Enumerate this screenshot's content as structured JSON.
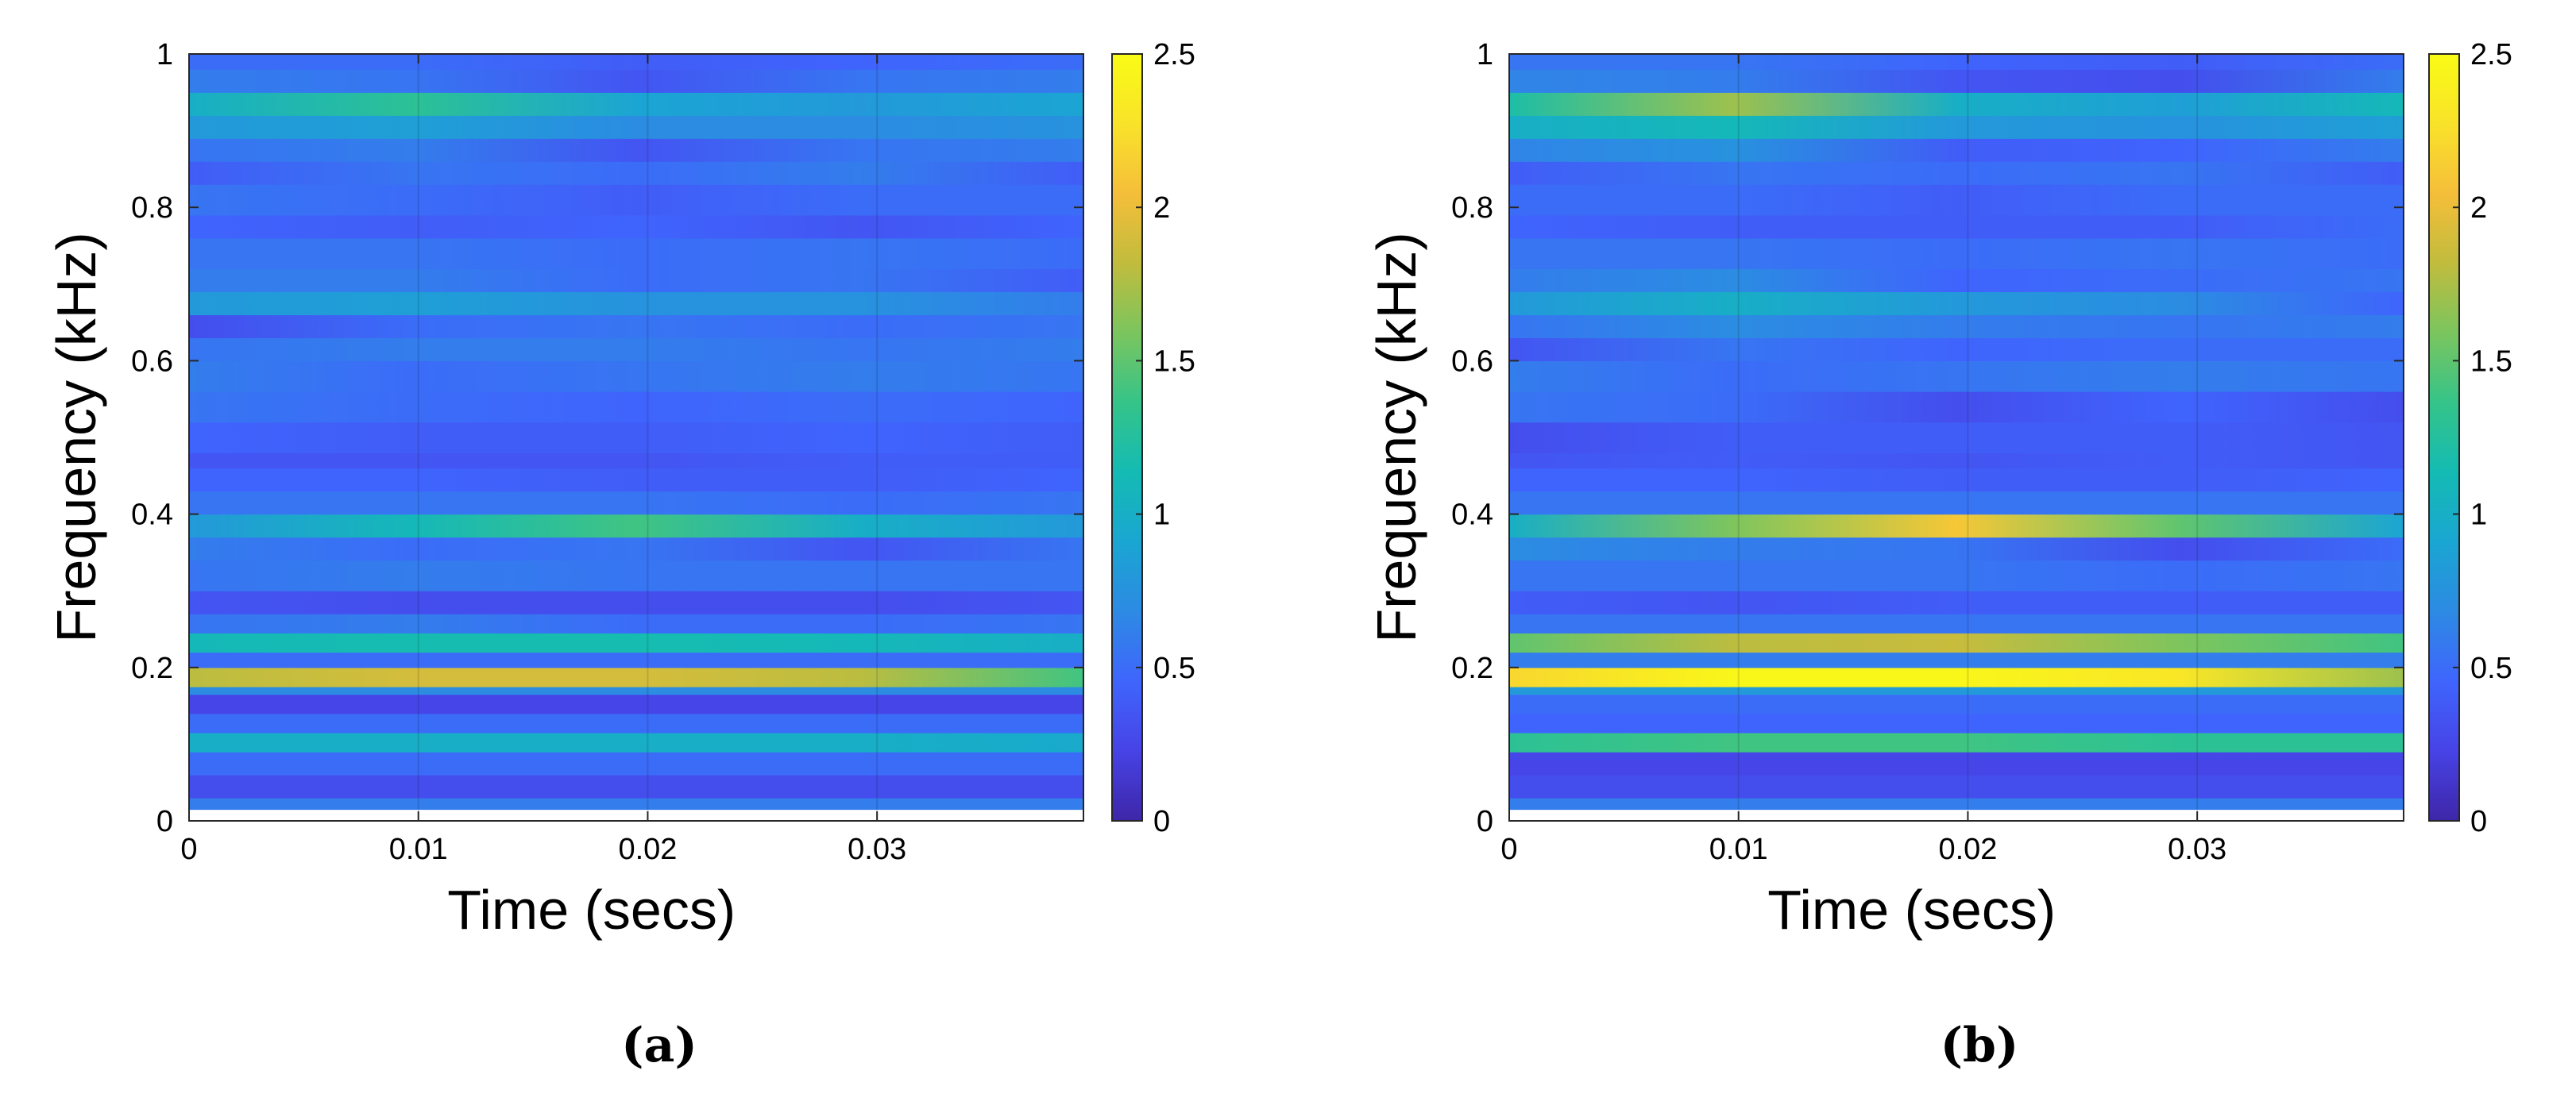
{
  "figure": {
    "panel_labels": [
      "(a)",
      "(b)"
    ]
  },
  "chart_data": [
    {
      "type": "heatmap",
      "panel": "(a)",
      "xlabel": "Time (secs)",
      "ylabel": "Frequency (kHz)",
      "xlim": [
        0,
        0.039
      ],
      "ylim": [
        0,
        1
      ],
      "xticks": [
        0,
        0.01,
        0.02,
        0.03
      ],
      "xtick_labels": [
        "0",
        "0.01",
        "0.02",
        "0.03"
      ],
      "yticks": [
        0,
        0.2,
        0.4,
        0.6,
        0.8,
        1
      ],
      "ytick_labels": [
        "0",
        "0.2",
        "0.4",
        "0.6",
        "0.8",
        "1"
      ],
      "colorbar": {
        "range": [
          0,
          2.5
        ],
        "ticks": [
          0,
          0.5,
          1,
          1.5,
          2,
          2.5
        ],
        "tick_labels": [
          "0",
          "0.5",
          "1",
          "1.5",
          "2",
          "2.5"
        ],
        "colormap": [
          "#3e26a8",
          "#4743e6",
          "#3f65fd",
          "#2d8ae3",
          "#1aa6d2",
          "#14bbb3",
          "#35c489",
          "#7bc55e",
          "#c1bc3d",
          "#f5be3a",
          "#f9e32a",
          "#f9fb15"
        ]
      },
      "time_points": [
        0,
        0.00975,
        0.0195,
        0.02925,
        0.039
      ],
      "bands": [
        {
          "f_low": 0.015,
          "f_high": 0.03,
          "values": [
            0.6,
            0.6,
            0.6,
            0.6,
            0.6
          ]
        },
        {
          "f_low": 0.03,
          "f_high": 0.06,
          "values": [
            0.3,
            0.3,
            0.3,
            0.3,
            0.3
          ]
        },
        {
          "f_low": 0.06,
          "f_high": 0.09,
          "values": [
            0.5,
            0.5,
            0.5,
            0.5,
            0.5
          ]
        },
        {
          "f_low": 0.09,
          "f_high": 0.115,
          "values": [
            1.0,
            1.0,
            1.0,
            1.0,
            0.95
          ]
        },
        {
          "f_low": 0.115,
          "f_high": 0.14,
          "values": [
            0.5,
            0.5,
            0.5,
            0.5,
            0.5
          ]
        },
        {
          "f_low": 0.14,
          "f_high": 0.165,
          "values": [
            0.25,
            0.25,
            0.25,
            0.25,
            0.25
          ]
        },
        {
          "f_low": 0.165,
          "f_high": 0.175,
          "values": [
            0.7,
            0.7,
            0.7,
            0.7,
            0.7
          ]
        },
        {
          "f_low": 0.175,
          "f_high": 0.2,
          "values": [
            1.8,
            1.9,
            1.9,
            1.8,
            1.4
          ]
        },
        {
          "f_low": 0.2,
          "f_high": 0.22,
          "values": [
            0.5,
            0.5,
            0.5,
            0.5,
            0.5
          ]
        },
        {
          "f_low": 0.22,
          "f_high": 0.245,
          "values": [
            1.1,
            1.15,
            1.15,
            1.1,
            1.0
          ]
        },
        {
          "f_low": 0.245,
          "f_high": 0.27,
          "values": [
            0.55,
            0.6,
            0.5,
            0.5,
            0.55
          ]
        },
        {
          "f_low": 0.27,
          "f_high": 0.3,
          "values": [
            0.35,
            0.3,
            0.3,
            0.3,
            0.35
          ]
        },
        {
          "f_low": 0.3,
          "f_high": 0.34,
          "values": [
            0.55,
            0.6,
            0.55,
            0.55,
            0.55
          ]
        },
        {
          "f_low": 0.34,
          "f_high": 0.37,
          "values": [
            0.6,
            0.5,
            0.55,
            0.35,
            0.55
          ]
        },
        {
          "f_low": 0.37,
          "f_high": 0.4,
          "values": [
            0.8,
            1.1,
            1.4,
            1.0,
            0.8
          ]
        },
        {
          "f_low": 0.4,
          "f_high": 0.43,
          "values": [
            0.55,
            0.55,
            0.55,
            0.5,
            0.55
          ]
        },
        {
          "f_low": 0.43,
          "f_high": 0.46,
          "values": [
            0.45,
            0.45,
            0.4,
            0.4,
            0.45
          ]
        },
        {
          "f_low": 0.46,
          "f_high": 0.48,
          "values": [
            0.35,
            0.35,
            0.35,
            0.4,
            0.4
          ]
        },
        {
          "f_low": 0.48,
          "f_high": 0.52,
          "values": [
            0.45,
            0.4,
            0.4,
            0.45,
            0.4
          ]
        },
        {
          "f_low": 0.52,
          "f_high": 0.56,
          "values": [
            0.55,
            0.5,
            0.45,
            0.5,
            0.45
          ]
        },
        {
          "f_low": 0.56,
          "f_high": 0.6,
          "values": [
            0.6,
            0.5,
            0.55,
            0.6,
            0.55
          ]
        },
        {
          "f_low": 0.6,
          "f_high": 0.63,
          "values": [
            0.55,
            0.6,
            0.6,
            0.55,
            0.6
          ]
        },
        {
          "f_low": 0.63,
          "f_high": 0.66,
          "values": [
            0.3,
            0.5,
            0.55,
            0.5,
            0.55
          ]
        },
        {
          "f_low": 0.66,
          "f_high": 0.69,
          "values": [
            0.8,
            0.85,
            0.75,
            0.75,
            0.6
          ]
        },
        {
          "f_low": 0.69,
          "f_high": 0.72,
          "values": [
            0.6,
            0.6,
            0.5,
            0.55,
            0.4
          ]
        },
        {
          "f_low": 0.72,
          "f_high": 0.76,
          "values": [
            0.55,
            0.55,
            0.5,
            0.55,
            0.5
          ]
        },
        {
          "f_low": 0.76,
          "f_high": 0.79,
          "values": [
            0.45,
            0.4,
            0.45,
            0.35,
            0.45
          ]
        },
        {
          "f_low": 0.79,
          "f_high": 0.83,
          "values": [
            0.55,
            0.5,
            0.4,
            0.5,
            0.5
          ]
        },
        {
          "f_low": 0.83,
          "f_high": 0.86,
          "values": [
            0.4,
            0.55,
            0.5,
            0.6,
            0.4
          ]
        },
        {
          "f_low": 0.86,
          "f_high": 0.89,
          "values": [
            0.55,
            0.6,
            0.35,
            0.55,
            0.6
          ]
        },
        {
          "f_low": 0.89,
          "f_high": 0.92,
          "values": [
            0.8,
            0.85,
            0.7,
            0.7,
            0.75
          ]
        },
        {
          "f_low": 0.92,
          "f_high": 0.95,
          "values": [
            1.0,
            1.3,
            0.9,
            0.8,
            0.9
          ]
        },
        {
          "f_low": 0.95,
          "f_high": 0.98,
          "values": [
            0.6,
            0.55,
            0.35,
            0.55,
            0.6
          ]
        },
        {
          "f_low": 0.98,
          "f_high": 1.0,
          "values": [
            0.5,
            0.5,
            0.4,
            0.45,
            0.5
          ]
        }
      ]
    },
    {
      "type": "heatmap",
      "panel": "(b)",
      "xlabel": "Time (secs)",
      "ylabel": "Frequency (kHz)",
      "xlim": [
        0,
        0.039
      ],
      "ylim": [
        0,
        1
      ],
      "xticks": [
        0,
        0.01,
        0.02,
        0.03
      ],
      "xtick_labels": [
        "0",
        "0.01",
        "0.02",
        "0.03"
      ],
      "yticks": [
        0,
        0.2,
        0.4,
        0.6,
        0.8,
        1
      ],
      "ytick_labels": [
        "0",
        "0.2",
        "0.4",
        "0.6",
        "0.8",
        "1"
      ],
      "colorbar": {
        "range": [
          0,
          2.5
        ],
        "ticks": [
          0,
          0.5,
          1,
          1.5,
          2,
          2.5
        ],
        "tick_labels": [
          "0",
          "0.5",
          "1",
          "1.5",
          "2",
          "2.5"
        ],
        "colormap": [
          "#3e26a8",
          "#4743e6",
          "#3f65fd",
          "#2d8ae3",
          "#1aa6d2",
          "#14bbb3",
          "#35c489",
          "#7bc55e",
          "#c1bc3d",
          "#f5be3a",
          "#f9e32a",
          "#f9fb15"
        ]
      },
      "time_points": [
        0,
        0.00975,
        0.0195,
        0.02925,
        0.039
      ],
      "bands": [
        {
          "f_low": 0.015,
          "f_high": 0.03,
          "values": [
            0.6,
            0.6,
            0.6,
            0.6,
            0.6
          ]
        },
        {
          "f_low": 0.03,
          "f_high": 0.06,
          "values": [
            0.3,
            0.3,
            0.3,
            0.3,
            0.3
          ]
        },
        {
          "f_low": 0.06,
          "f_high": 0.09,
          "values": [
            0.25,
            0.25,
            0.25,
            0.25,
            0.25
          ]
        },
        {
          "f_low": 0.09,
          "f_high": 0.115,
          "values": [
            1.3,
            1.4,
            1.4,
            1.3,
            1.3
          ]
        },
        {
          "f_low": 0.115,
          "f_high": 0.14,
          "values": [
            0.45,
            0.45,
            0.45,
            0.45,
            0.45
          ]
        },
        {
          "f_low": 0.14,
          "f_high": 0.165,
          "values": [
            0.5,
            0.5,
            0.5,
            0.5,
            0.5
          ]
        },
        {
          "f_low": 0.165,
          "f_high": 0.175,
          "values": [
            0.8,
            0.8,
            0.8,
            0.8,
            0.8
          ]
        },
        {
          "f_low": 0.175,
          "f_high": 0.2,
          "values": [
            2.2,
            2.45,
            2.45,
            2.3,
            1.7
          ]
        },
        {
          "f_low": 0.2,
          "f_high": 0.22,
          "values": [
            0.6,
            0.6,
            0.6,
            0.6,
            0.6
          ]
        },
        {
          "f_low": 0.22,
          "f_high": 0.245,
          "values": [
            1.5,
            1.8,
            1.85,
            1.6,
            1.4
          ]
        },
        {
          "f_low": 0.245,
          "f_high": 0.27,
          "values": [
            0.55,
            0.55,
            0.55,
            0.55,
            0.55
          ]
        },
        {
          "f_low": 0.27,
          "f_high": 0.3,
          "values": [
            0.4,
            0.35,
            0.4,
            0.4,
            0.4
          ]
        },
        {
          "f_low": 0.3,
          "f_high": 0.34,
          "values": [
            0.55,
            0.55,
            0.55,
            0.5,
            0.55
          ]
        },
        {
          "f_low": 0.34,
          "f_high": 0.37,
          "values": [
            0.7,
            0.6,
            0.55,
            0.3,
            0.5
          ]
        },
        {
          "f_low": 0.37,
          "f_high": 0.4,
          "values": [
            1.0,
            1.6,
            2.1,
            1.5,
            0.9
          ]
        },
        {
          "f_low": 0.4,
          "f_high": 0.43,
          "values": [
            0.55,
            0.55,
            0.55,
            0.55,
            0.55
          ]
        },
        {
          "f_low": 0.43,
          "f_high": 0.46,
          "values": [
            0.45,
            0.45,
            0.4,
            0.4,
            0.45
          ]
        },
        {
          "f_low": 0.46,
          "f_high": 0.48,
          "values": [
            0.35,
            0.4,
            0.35,
            0.4,
            0.35
          ]
        },
        {
          "f_low": 0.48,
          "f_high": 0.52,
          "values": [
            0.3,
            0.4,
            0.4,
            0.4,
            0.35
          ]
        },
        {
          "f_low": 0.52,
          "f_high": 0.56,
          "values": [
            0.55,
            0.5,
            0.3,
            0.45,
            0.3
          ]
        },
        {
          "f_low": 0.56,
          "f_high": 0.6,
          "values": [
            0.6,
            0.5,
            0.55,
            0.6,
            0.55
          ]
        },
        {
          "f_low": 0.6,
          "f_high": 0.63,
          "values": [
            0.35,
            0.55,
            0.45,
            0.5,
            0.5
          ]
        },
        {
          "f_low": 0.63,
          "f_high": 0.66,
          "values": [
            0.55,
            0.7,
            0.6,
            0.55,
            0.6
          ]
        },
        {
          "f_low": 0.66,
          "f_high": 0.69,
          "values": [
            0.8,
            1.0,
            0.8,
            0.7,
            0.45
          ]
        },
        {
          "f_low": 0.69,
          "f_high": 0.72,
          "values": [
            0.6,
            0.7,
            0.45,
            0.5,
            0.55
          ]
        },
        {
          "f_low": 0.72,
          "f_high": 0.76,
          "values": [
            0.55,
            0.55,
            0.5,
            0.55,
            0.5
          ]
        },
        {
          "f_low": 0.76,
          "f_high": 0.79,
          "values": [
            0.45,
            0.4,
            0.4,
            0.4,
            0.5
          ]
        },
        {
          "f_low": 0.79,
          "f_high": 0.83,
          "values": [
            0.5,
            0.5,
            0.4,
            0.5,
            0.5
          ]
        },
        {
          "f_low": 0.83,
          "f_high": 0.86,
          "values": [
            0.4,
            0.55,
            0.5,
            0.55,
            0.4
          ]
        },
        {
          "f_low": 0.86,
          "f_high": 0.89,
          "values": [
            0.65,
            0.75,
            0.4,
            0.45,
            0.6
          ]
        },
        {
          "f_low": 0.89,
          "f_high": 0.92,
          "values": [
            1.0,
            1.1,
            0.8,
            0.75,
            0.85
          ]
        },
        {
          "f_low": 0.92,
          "f_high": 0.95,
          "values": [
            1.2,
            1.7,
            1.0,
            0.85,
            1.1
          ]
        },
        {
          "f_low": 0.95,
          "f_high": 0.98,
          "values": [
            0.65,
            0.6,
            0.35,
            0.3,
            0.6
          ]
        },
        {
          "f_low": 0.98,
          "f_high": 1.0,
          "values": [
            0.55,
            0.55,
            0.45,
            0.4,
            0.5
          ]
        }
      ]
    }
  ]
}
